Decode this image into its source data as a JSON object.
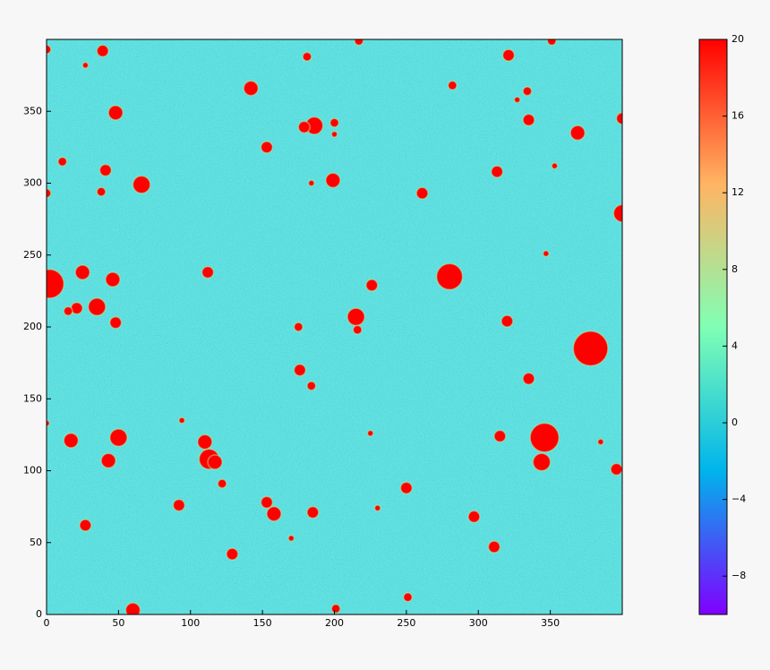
{
  "chart_data": {
    "type": "image",
    "xlim": [
      0,
      400
    ],
    "ylim": [
      0,
      400
    ],
    "xticks": [
      0,
      50,
      100,
      150,
      200,
      250,
      300,
      350
    ],
    "yticks": [
      0,
      50,
      100,
      150,
      200,
      250,
      300,
      350
    ],
    "colorbar": {
      "lim": [
        -10,
        20
      ],
      "colormap": "rainbow",
      "ticks": [
        {
          "value": -8,
          "label": "−8"
        },
        {
          "value": -4,
          "label": "−4"
        },
        0,
        4,
        8,
        12,
        16,
        20
      ]
    },
    "sources": {
      "color": "#ff0000",
      "x": [
        0,
        39,
        27,
        181,
        217,
        351,
        321,
        142,
        282,
        334,
        327,
        48,
        186,
        179,
        200,
        200,
        335,
        369,
        400,
        153,
        11,
        41,
        313,
        353,
        66,
        199,
        184,
        38,
        261,
        0,
        400,
        347,
        25,
        112,
        280,
        2,
        46,
        226,
        35,
        21,
        15,
        215,
        216,
        48,
        175,
        320,
        378,
        176,
        184,
        335,
        94,
        346,
        225,
        17,
        50,
        315,
        110,
        385,
        113,
        117,
        43,
        344,
        396,
        122,
        250,
        153,
        158,
        92,
        185,
        230,
        297,
        27,
        170,
        311,
        129,
        251,
        60,
        201,
        0
      ],
      "y": [
        393,
        392,
        382,
        388,
        399,
        399,
        389,
        366,
        368,
        364,
        358,
        349,
        340,
        339,
        342,
        334,
        344,
        335,
        345,
        325,
        315,
        309,
        308,
        312,
        299,
        302,
        300,
        294,
        293,
        293,
        279,
        251,
        238,
        238,
        235,
        230,
        233,
        229,
        214,
        213,
        211,
        207,
        198,
        203,
        200,
        204,
        185,
        170,
        159,
        164,
        135,
        123,
        126,
        121,
        123,
        124,
        120,
        120,
        108,
        106,
        107,
        106,
        101,
        91,
        88,
        78,
        70,
        76,
        71,
        74,
        68,
        62,
        53,
        47,
        42,
        12,
        3,
        4,
        133
      ],
      "size": [
        3,
        4,
        2,
        3,
        3,
        3,
        4,
        5,
        3,
        3,
        2,
        5,
        6,
        4,
        3,
        2,
        4,
        5,
        4,
        4,
        3,
        4,
        4,
        2,
        6,
        5,
        2,
        3,
        4,
        3,
        6,
        2,
        5,
        4,
        9,
        10,
        5,
        4,
        6,
        4,
        3,
        6,
        3,
        4,
        3,
        4,
        12,
        4,
        3,
        4,
        2,
        10,
        2,
        5,
        6,
        4,
        5,
        2,
        7,
        5,
        5,
        6,
        4,
        3,
        4,
        4,
        5,
        4,
        4,
        2,
        4,
        4,
        2,
        4,
        4,
        3,
        5,
        3,
        2
      ]
    }
  }
}
